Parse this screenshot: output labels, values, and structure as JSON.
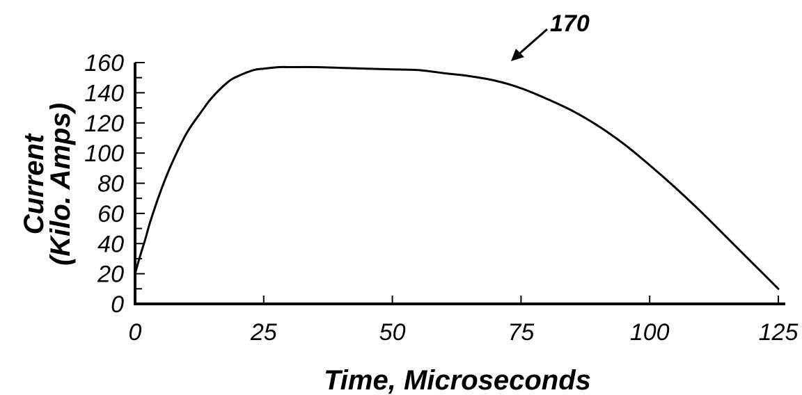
{
  "chart_data": {
    "type": "line",
    "xlabel": "Time, Microseconds",
    "ylabel_line1": "Current",
    "ylabel_line2": "(Kilo. Amps)",
    "annotation": "170",
    "xlim": [
      0,
      125
    ],
    "ylim": [
      0,
      160
    ],
    "x_ticks": [
      0,
      25,
      50,
      75,
      100,
      125
    ],
    "y_ticks": [
      0,
      20,
      40,
      60,
      80,
      100,
      120,
      140,
      160
    ],
    "grid": false,
    "legend": "none",
    "line_color": "#000000",
    "series": [
      {
        "x": [
          0,
          1,
          2,
          3,
          5,
          7,
          10,
          13,
          15,
          18,
          20,
          23,
          25,
          28,
          30,
          35,
          40,
          45,
          50,
          55,
          60,
          65,
          70,
          75,
          80,
          85,
          90,
          95,
          100,
          105,
          110,
          115,
          120,
          125
        ],
        "values": [
          20,
          32,
          43,
          55,
          75,
          92,
          113,
          128,
          137,
          147,
          151,
          155,
          156,
          157,
          157,
          157,
          156.5,
          156,
          155.5,
          155,
          153,
          151,
          148,
          143,
          136,
          128,
          118,
          106,
          92,
          77,
          61,
          44,
          27,
          10
        ]
      }
    ]
  }
}
